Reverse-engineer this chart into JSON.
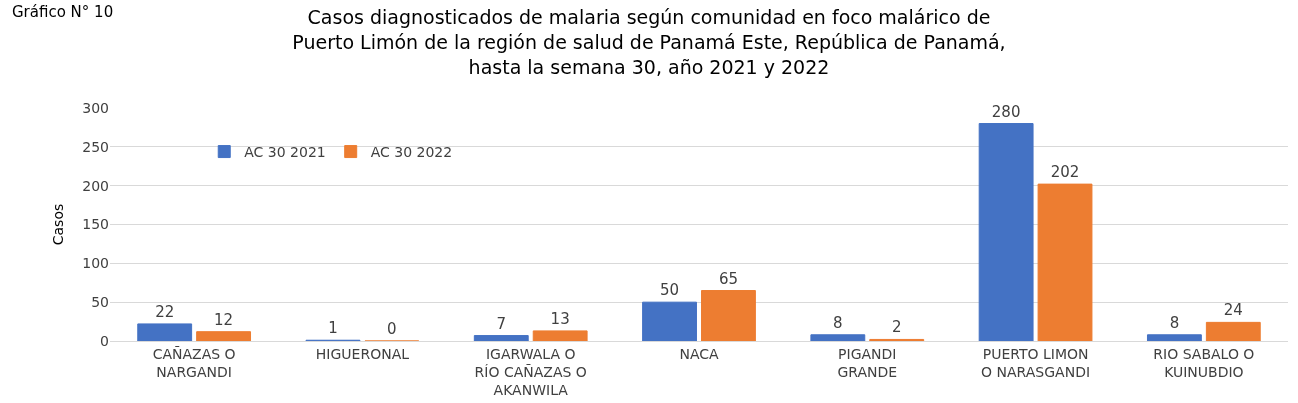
{
  "chart_data": {
    "type": "bar",
    "title": "Casos diagnosticados de malaria según comunidad en foco malárico de\nPuerto Limón de la región de salud de Panamá Este, República de Panamá,\nhasta la semana 30, año 2021 y 2022",
    "annotations": [
      "Gráfico N° 10"
    ],
    "ylabel": "Casos",
    "categories": [
      "CAÑAZAS O\nNARGANDI",
      "HIGUERONAL",
      "IGARWALA O\nRÍO CAÑAZAS O\nAKANWILA",
      "NACA",
      "PIGANDI\nGRANDE",
      "PUERTO LIMON\nO NARASGANDI",
      "RIO SABALO O\nKUINUBDIO"
    ],
    "series": [
      {
        "name": "AC 30 2021",
        "color": "#4472c4",
        "values": [
          22,
          1,
          7,
          50,
          8,
          280,
          8
        ]
      },
      {
        "name": "AC 30 2022",
        "color": "#ed7d31",
        "values": [
          12,
          0,
          13,
          65,
          2,
          202,
          24
        ]
      }
    ],
    "ylim": [
      0,
      300
    ],
    "yticks": [
      0,
      50,
      100,
      150,
      200,
      250,
      300
    ],
    "grid": "y",
    "legend": "top left",
    "data_labels": true
  }
}
